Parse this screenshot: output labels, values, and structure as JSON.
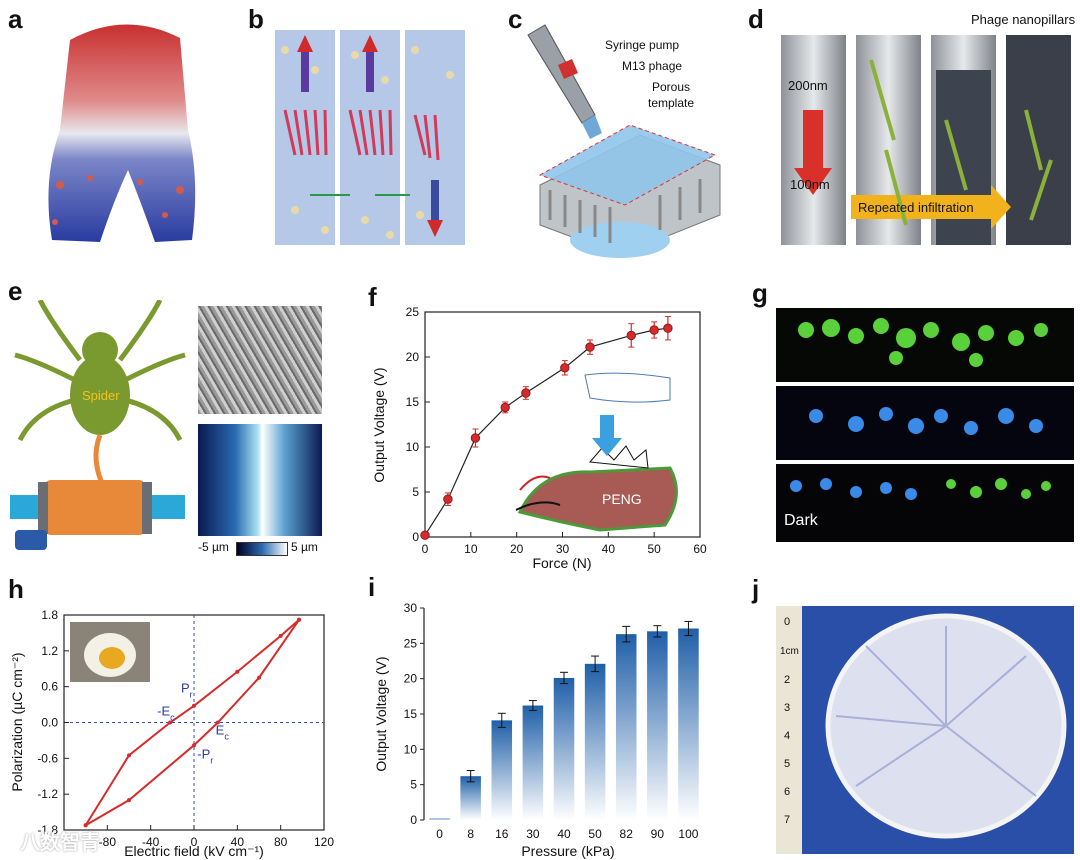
{
  "panel_letters": [
    "a",
    "b",
    "c",
    "d",
    "e",
    "f",
    "g",
    "h",
    "i",
    "j"
  ],
  "panel_c": {
    "syringe_label": "Syringe pump",
    "phage_label": "M13 phage",
    "template_label_1": "Porous",
    "template_label_2": "template"
  },
  "panel_d": {
    "nanopillars_label": "Phage nanopillars",
    "dim_200": "200nm",
    "dim_100": "100nm",
    "infiltration_label": "Repeated infiltration"
  },
  "panel_e": {
    "spider_label": "Spider",
    "scale_min": "-5 µm",
    "scale_max": "5 µm"
  },
  "panel_g": {
    "dark_label": "Dark"
  },
  "panel_j": {
    "ruler_unit": "1cm",
    "ruler_ticks": [
      "0",
      "1",
      "2",
      "3",
      "4",
      "5",
      "6",
      "7"
    ]
  },
  "colors": {
    "red": "#d62b2b",
    "blue": "#1f6fc0",
    "green": "#6e8f2e"
  },
  "watermark": "八数智青",
  "chart_data": [
    {
      "id": "f",
      "type": "line",
      "xlabel": "Force (N)",
      "ylabel": "Output Voltage (V)",
      "xlim": [
        0,
        60
      ],
      "ylim": [
        0,
        25
      ],
      "xticks": [
        0,
        10,
        20,
        30,
        40,
        50,
        60
      ],
      "yticks": [
        0,
        5,
        10,
        15,
        20,
        25
      ],
      "inset_label": "PENG",
      "x": [
        0,
        5,
        11,
        17.5,
        22,
        30.5,
        36,
        45,
        50,
        53
      ],
      "y": [
        0.2,
        4.2,
        11,
        14.4,
        16,
        18.8,
        21.1,
        22.4,
        23,
        23.2
      ],
      "err": [
        0.3,
        0.7,
        1.0,
        0.6,
        0.7,
        0.8,
        0.8,
        1.3,
        0.9,
        1.3
      ]
    },
    {
      "id": "h",
      "type": "line",
      "xlabel": "Electric field (kV cm⁻¹)",
      "ylabel": "Polarization (µC cm⁻²)",
      "xlim": [
        -120,
        120
      ],
      "ylim": [
        -1.8,
        1.8
      ],
      "xticks": [
        -120,
        -80,
        -40,
        0,
        40,
        80,
        120
      ],
      "yticks": [
        -1.8,
        -1.2,
        -0.6,
        0.0,
        0.6,
        1.2,
        1.8
      ],
      "xtick_labels": [
        "",
        "-80",
        "-40",
        "0",
        "40",
        "80",
        "120"
      ],
      "ytick_labels": [
        "-1.8",
        "-1.2",
        "-0.6",
        "0.0",
        "0.6",
        "1.2",
        "1.8"
      ],
      "annotations": {
        "pr": "P",
        "pr_sub": "r",
        "neg_pr": "-P",
        "neg_pr_sub": "r",
        "ec": "E",
        "ec_sub": "c",
        "neg_ec": "-E",
        "neg_ec_sub": "c"
      },
      "upper_branch": {
        "x": [
          -100,
          -60,
          -22,
          0,
          40,
          80,
          97
        ],
        "y": [
          -1.72,
          -0.55,
          0.0,
          0.28,
          0.85,
          1.45,
          1.72
        ]
      },
      "lower_branch": {
        "x": [
          -100,
          -60,
          0,
          22,
          60,
          97
        ],
        "y": [
          -1.72,
          -1.3,
          -0.38,
          0.0,
          0.75,
          1.72
        ]
      }
    },
    {
      "id": "i",
      "type": "bar",
      "xlabel": "Pressure (kPa)",
      "ylabel": "Output Voltage (V)",
      "ylim": [
        0,
        30
      ],
      "yticks": [
        0,
        5,
        10,
        15,
        20,
        25,
        30
      ],
      "categories": [
        "0",
        "8",
        "16",
        "30",
        "40",
        "50",
        "82",
        "90",
        "100"
      ],
      "values": [
        0.2,
        6.2,
        14.1,
        16.2,
        20.1,
        22.1,
        26.3,
        26.7,
        27.1
      ],
      "err": [
        0.0,
        0.8,
        1.0,
        0.7,
        0.8,
        1.1,
        1.1,
        0.8,
        1.0
      ]
    }
  ]
}
